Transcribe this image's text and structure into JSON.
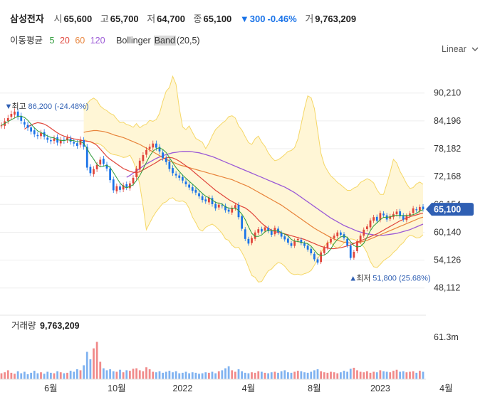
{
  "header": {
    "stock_name": "삼성전자",
    "open_label": "시",
    "open": "65,600",
    "high_label": "고",
    "high": "65,700",
    "low_label": "저",
    "low": "64,700",
    "close_label": "종",
    "close": "65,100",
    "change_arrow": "▼",
    "change": "300",
    "change_pct": "-0.46%",
    "volume_label": "거",
    "volume": "9,763,209"
  },
  "indicators": {
    "ma_label": "이동평균",
    "ma_periods": [
      "5",
      "20",
      "60",
      "120"
    ],
    "bb_label_a": "Bollinger",
    "bb_label_b": "Band",
    "bb_params": "(20,5)"
  },
  "scale_toggle": {
    "label": "Linear",
    "icon": "chevron-down-icon"
  },
  "colors": {
    "up": "#e0453b",
    "down": "#1a73e8",
    "ma5": "#2e9b3a",
    "ma20": "#e0453b",
    "ma60": "#e8833a",
    "ma120": "#9b59d6",
    "band_fill": "#fff6d6",
    "band_line": "#f5d766",
    "price_tag": "#2f5fb3",
    "volume_up": "#f08a8a",
    "volume_down": "#7fb2f0"
  },
  "volume_panel": {
    "label": "거래량",
    "value": "9,763,209",
    "axis_max": "61.3m"
  },
  "chart_data": {
    "type": "candlestick",
    "y_axis_ticks": [
      90210,
      84196,
      78182,
      72168,
      66154,
      60140,
      54126,
      48112
    ],
    "y_tick_labels": [
      "90,210",
      "84,196",
      "78,182",
      "72,168",
      "66,154",
      "60,140",
      "54,126",
      "48,112"
    ],
    "ylim": [
      45000,
      98000
    ],
    "x_tick_labels": [
      "6월",
      "10월",
      "2022",
      "4월",
      "8월",
      "2023",
      "4월"
    ],
    "x_tick_positions": [
      15,
      35,
      55,
      75,
      95,
      115,
      135
    ],
    "last_price": 65100,
    "last_price_label": "65,100",
    "max_annotation": {
      "marker": "▼",
      "label": "최고",
      "value_text": "86,200 (-24.48%)",
      "price": 86200,
      "index": 4
    },
    "min_annotation": {
      "marker": "▲",
      "label": "최저",
      "value_text": "51,800 (25.68%)",
      "price": 51800,
      "index": 106
    },
    "close": [
      83200,
      84100,
      84800,
      85700,
      86200,
      85100,
      84200,
      83400,
      82700,
      81900,
      81300,
      80900,
      81600,
      80800,
      80100,
      79800,
      80400,
      79500,
      80100,
      79900,
      80600,
      79700,
      79300,
      78800,
      80200,
      78600,
      74100,
      72900,
      73800,
      74700,
      75800,
      74900,
      73900,
      71400,
      69200,
      70100,
      69300,
      70300,
      69800,
      70700,
      71900,
      73900,
      75600,
      76800,
      77900,
      78600,
      79300,
      78400,
      77600,
      76200,
      75300,
      73800,
      72900,
      72400,
      71900,
      71300,
      70500,
      69800,
      69100,
      68700,
      67900,
      67100,
      66800,
      67600,
      66200,
      65300,
      66100,
      65800,
      64900,
      64600,
      65400,
      66000,
      63400,
      60900,
      58700,
      57700,
      58900,
      60100,
      60800,
      60300,
      61200,
      60400,
      59600,
      61100,
      60100,
      59200,
      58600,
      57900,
      57200,
      58300,
      58700,
      57800,
      57200,
      56400,
      55600,
      54300,
      53600,
      55800,
      56800,
      57900,
      58700,
      59400,
      60100,
      59600,
      58900,
      57300,
      54600,
      55900,
      58200,
      59400,
      60700,
      61400,
      62700,
      63400,
      62600,
      64300,
      63800,
      62900,
      63600,
      64100,
      64600,
      63600,
      62900,
      63700,
      64200,
      65300,
      64900,
      65600,
      65100
    ],
    "ma20": [
      82400,
      82900,
      83300,
      83600,
      83800,
      83700,
      83500,
      83100,
      82600,
      82100,
      81600,
      81200,
      80900,
      80700,
      80500,
      80300,
      80200,
      80000,
      79900,
      79800,
      79700,
      79400,
      78900,
      78100,
      77300,
      76500,
      75900,
      75400,
      74900,
      74400,
      73900,
      73600,
      73300,
      73100,
      73000,
      73200,
      73600,
      74000,
      74400,
      74800,
      75200,
      75700,
      76000,
      76200,
      76300,
      76200,
      75900,
      75500,
      75000,
      74500,
      74000,
      73400,
      72800,
      72200,
      71600,
      71000,
      70400,
      69800,
      69200,
      68700,
      68200,
      67700,
      67200,
      66800,
      66400,
      66000,
      65700,
      65400,
      64900,
      64300,
      63600,
      62800,
      62100,
      61500,
      61000,
      60600,
      60300,
      60100,
      60000,
      59800,
      59600,
      59400,
      59200,
      59000,
      58800,
      58600,
      58300,
      58000,
      57700,
      57400,
      57100,
      56900,
      56700,
      56600,
      56600,
      56700,
      56800,
      57000,
      57200,
      57400,
      57700,
      58000,
      58300,
      58600,
      58900,
      59200,
      59500,
      59800,
      60200,
      60600,
      61000,
      61400,
      61800,
      62200,
      62600,
      62900,
      63200,
      63500,
      63700,
      63900,
      64100,
      64300
    ],
    "ma60": [
      81700,
      81900,
      82000,
      82100,
      82100,
      82000,
      81900,
      81700,
      81500,
      81200,
      81000,
      80800,
      80600,
      80300,
      80000,
      79700,
      79400,
      79100,
      78700,
      78300,
      77900,
      77500,
      77100,
      76700,
      76300,
      75900,
      75600,
      75300,
      75000,
      74700,
      74500,
      74300,
      74100,
      73900,
      73700,
      73500,
      73300,
      73100,
      72900,
      72700,
      72500,
      72300,
      72100,
      71900,
      71700,
      71500,
      71200,
      70900,
      70600,
      70300,
      70000,
      69600,
      69200,
      68800,
      68400,
      68000,
      67600,
      67200,
      66800,
      66400,
      66000,
      65500,
      65000,
      64500,
      64000,
      63500,
      63000,
      62500,
      62000,
      61500,
      61000,
      60600,
      60200,
      59800,
      59400,
      59000,
      58700,
      58400,
      58200,
      58000,
      57900,
      57800,
      57800,
      57900,
      58000,
      58200,
      58400,
      58700,
      59000,
      59300,
      59600,
      59900,
      60200,
      60500,
      60800,
      61100,
      61400,
      61700,
      62000,
      62300,
      62600,
      62900,
      63200,
      63400
    ],
    "ma120": [
      72000,
      72400,
      72900,
      73400,
      73900,
      74400,
      74900,
      75300,
      75700,
      76100,
      76400,
      76700,
      76900,
      77100,
      77300,
      77400,
      77500,
      77600,
      77600,
      77600,
      77500,
      77400,
      77300,
      77100,
      76900,
      76700,
      76500,
      76200,
      75900,
      75600,
      75300,
      75000,
      74700,
      74400,
      74100,
      73800,
      73500,
      73200,
      72900,
      72600,
      72300,
      72000,
      71700,
      71400,
      71100,
      70800,
      70500,
      70200,
      69900,
      69500,
      69100,
      68700,
      68200,
      67700,
      67200,
      66700,
      66200,
      65700,
      65200,
      64700,
      64200,
      63700,
      63200,
      62800,
      62400,
      62000,
      61600,
      61300,
      61000,
      60700,
      60400,
      60200,
      60000,
      59800,
      59700,
      59600,
      59500,
      59500,
      59500,
      59600,
      59700,
      59800,
      59900,
      60100,
      60300,
      60500,
      60700,
      61000,
      61300,
      61600,
      61900
    ],
    "bb_upper": [
      86500,
      87900,
      88700,
      89100,
      88600,
      87400,
      86800,
      86400,
      85800,
      85500,
      84600,
      83800,
      83900,
      83400,
      83200,
      82800,
      83600,
      82700,
      83200,
      83500,
      84300,
      84100,
      84500,
      85800,
      88400,
      90600,
      91400,
      93800,
      92100,
      86900,
      82900,
      82300,
      83100,
      81700,
      80400,
      80000,
      79600,
      78200,
      79400,
      81000,
      82300,
      83000,
      83700,
      84200,
      85100,
      85300,
      84800,
      83100,
      82200,
      80800,
      79500,
      79100,
      80300,
      80900,
      79600,
      78700,
      77300,
      76300,
      75600,
      75800,
      76300,
      76900,
      77600,
      77800,
      78400,
      80300,
      83500,
      86800,
      89600,
      89200,
      86900,
      82100,
      77200,
      74700,
      73400,
      72300,
      71700,
      70900,
      70400,
      69800,
      69200,
      69200,
      69700,
      70000,
      70900,
      71300,
      71700,
      71400,
      70800,
      69300,
      68300,
      68300,
      70600,
      73100,
      75900,
      75100,
      73300,
      72000,
      70600,
      69600,
      69800,
      70600,
      71000,
      70500
    ],
    "bb_lower": [
      80200,
      79900,
      79600,
      79300,
      79400,
      79100,
      78600,
      77800,
      77200,
      76900,
      76800,
      76600,
      76300,
      76400,
      76800,
      75500,
      73600,
      70300,
      65800,
      60700,
      62100,
      63500,
      64600,
      65500,
      66400,
      66700,
      67400,
      67600,
      67000,
      66800,
      66900,
      66500,
      65300,
      63400,
      62200,
      60800,
      60400,
      61200,
      61600,
      61900,
      61400,
      60700,
      59900,
      58700,
      58400,
      57300,
      56800,
      56900,
      55800,
      54400,
      52600,
      50800,
      50400,
      49400,
      49500,
      50700,
      51800,
      52200,
      53000,
      53600,
      53400,
      52800,
      51900,
      51200,
      51000,
      51100,
      50900,
      51200,
      51400,
      51900,
      53000,
      54300,
      55700,
      56900,
      58000,
      57900,
      57100,
      56700,
      57100,
      57800,
      58500,
      58700,
      58600,
      58200,
      57700,
      57000,
      55700,
      53800,
      52700,
      52500,
      53200,
      54000,
      54500,
      55000,
      55800,
      56400,
      57300,
      57900,
      58900,
      59500,
      59300,
      58900,
      59000,
      59600
    ],
    "volume_relative": [
      0.12,
      0.14,
      0.18,
      0.13,
      0.11,
      0.16,
      0.12,
      0.15,
      0.1,
      0.13,
      0.17,
      0.12,
      0.14,
      0.11,
      0.15,
      0.13,
      0.12,
      0.16,
      0.14,
      0.12,
      0.13,
      0.17,
      0.15,
      0.2,
      0.18,
      0.28,
      0.55,
      0.4,
      0.62,
      0.75,
      0.35,
      0.22,
      0.18,
      0.2,
      0.16,
      0.15,
      0.19,
      0.14,
      0.18,
      0.17,
      0.21,
      0.22,
      0.18,
      0.16,
      0.24,
      0.2,
      0.15,
      0.14,
      0.16,
      0.13,
      0.15,
      0.17,
      0.14,
      0.16,
      0.12,
      0.13,
      0.15,
      0.12,
      0.14,
      0.13,
      0.11,
      0.12,
      0.14,
      0.13,
      0.15,
      0.12,
      0.16,
      0.18,
      0.22,
      0.26,
      0.18,
      0.15,
      0.2,
      0.16,
      0.13,
      0.12,
      0.14,
      0.13,
      0.16,
      0.15,
      0.13,
      0.12,
      0.14,
      0.15,
      0.13,
      0.16,
      0.18,
      0.14,
      0.13,
      0.15,
      0.17,
      0.16,
      0.14,
      0.13,
      0.15,
      0.18,
      0.2,
      0.16,
      0.14,
      0.13,
      0.15,
      0.14,
      0.12,
      0.14,
      0.17,
      0.15,
      0.21,
      0.23,
      0.18,
      0.15,
      0.14,
      0.16,
      0.13,
      0.15,
      0.14,
      0.18,
      0.16,
      0.15,
      0.14,
      0.17,
      0.19,
      0.15,
      0.16,
      0.14,
      0.15,
      0.16,
      0.13,
      0.17,
      0.15
    ]
  }
}
